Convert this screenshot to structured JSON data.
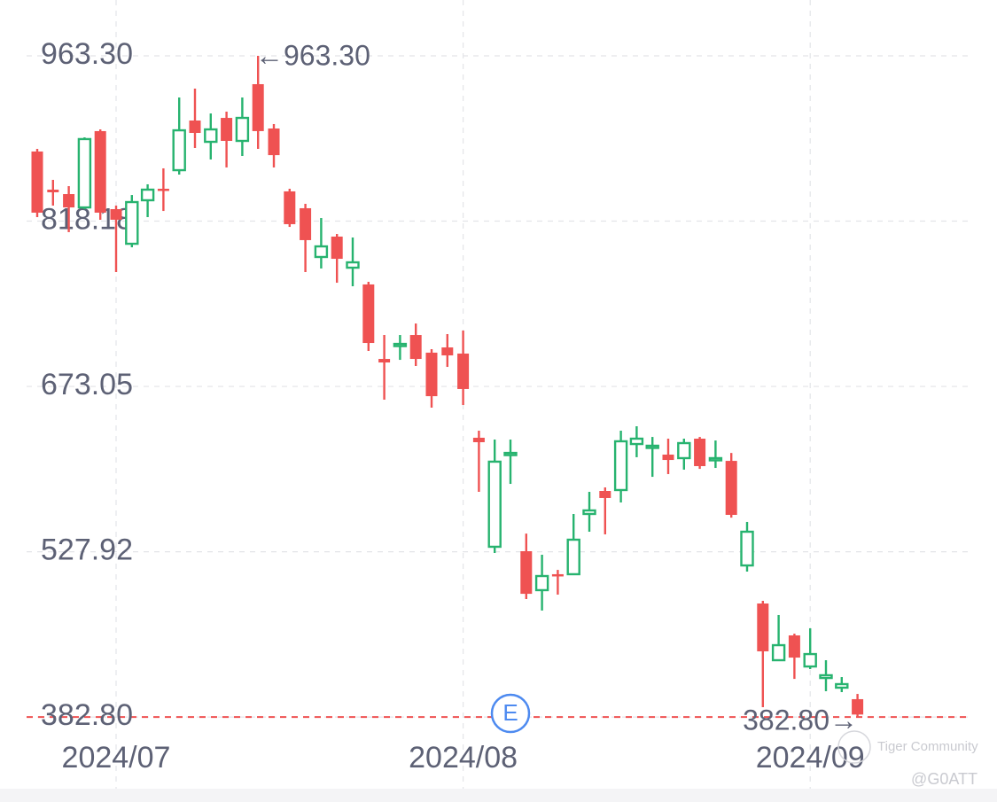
{
  "chart_data": {
    "type": "candlestick",
    "categories": [
      null,
      null,
      null,
      null,
      null,
      "2024/07",
      null,
      null,
      null,
      null,
      null,
      null,
      null,
      null,
      null,
      null,
      null,
      null,
      null,
      null,
      null,
      null,
      null,
      null,
      null,
      null,
      null,
      "2024/08",
      null,
      null,
      null,
      null,
      null,
      null,
      null,
      null,
      null,
      null,
      null,
      null,
      null,
      null,
      null,
      null,
      null,
      null,
      null,
      null,
      null,
      "2024/09",
      null,
      null,
      null
    ],
    "open": [
      879.3,
      845.8,
      841.9,
      830.2,
      897.2,
      828.7,
      798.3,
      836.5,
      846.6,
      862.9,
      906.5,
      887.8,
      908.8,
      888.6,
      938.4,
      899.5,
      844.3,
      829.5,
      786.7,
      804.6,
      777.3,
      762.6,
      697.2,
      708.9,
      718.2,
      702.7,
      707.3,
      701.9,
      628.0,
      532.3,
      613.2,
      528.4,
      494.2,
      508.2,
      508.2,
      561.1,
      581.3,
      582.1,
      622.5,
      619.4,
      613.2,
      610.1,
      627.2,
      608.5,
      607.7,
      515.9,
      482.5,
      432.7,
      454.5,
      427.2,
      417.1,
      408.6,
      398.5
    ],
    "high": [
      881.6,
      854.4,
      848.9,
      891.7,
      898.7,
      831.8,
      841.1,
      850.5,
      864.5,
      926.7,
      934.5,
      912.7,
      914.3,
      926.7,
      963.3,
      903.4,
      846.6,
      833.4,
      820.9,
      806.9,
      803.8,
      764.9,
      718.2,
      718.2,
      728.3,
      705.8,
      719.0,
      722.1,
      634.2,
      626.4,
      626.4,
      543.9,
      525.3,
      512.0,
      561.1,
      580.5,
      584.4,
      634.2,
      638.1,
      628.7,
      627.2,
      627.2,
      628.7,
      625.6,
      614.7,
      554.1,
      484.8,
      472.4,
      456.0,
      460.7,
      432.7,
      417.9,
      403.1
    ],
    "low": [
      821.7,
      831.8,
      808.5,
      828.7,
      819.4,
      773.5,
      795.2,
      821.7,
      827.1,
      859.0,
      882.4,
      872.3,
      865.3,
      875.4,
      881.6,
      865.3,
      813.1,
      773.5,
      776.6,
      764.1,
      761.0,
      704.2,
      661.4,
      696.4,
      691.0,
      654.4,
      690.2,
      656.8,
      580.5,
      526.8,
      587.5,
      486.4,
      476.3,
      490.3,
      507.4,
      545.5,
      543.2,
      571.2,
      610.9,
      593.7,
      596.1,
      600.0,
      600.7,
      601.5,
      557.9,
      510.5,
      391.5,
      432.7,
      416.3,
      424.9,
      405.5,
      404.7,
      382.8
    ],
    "close": [
      825.6,
      843.5,
      830.2,
      890.2,
      825.6,
      819.4,
      834.9,
      845.8,
      845.0,
      897.9,
      895.6,
      898.7,
      888.6,
      908.8,
      897.2,
      876.1,
      815.5,
      801.5,
      796.0,
      785.1,
      782.0,
      711.2,
      694.1,
      710.4,
      697.2,
      664.5,
      700.3,
      670.8,
      624.1,
      607.0,
      614.7,
      491.0,
      506.6,
      506.6,
      538.5,
      564.2,
      575.1,
      624.9,
      627.2,
      621.0,
      608.5,
      623.3,
      603.1,
      610.1,
      560.3,
      545.5,
      440.5,
      445.9,
      435.0,
      438.1,
      419.5,
      411.7,
      385.0
    ],
    "up_color": "#27b36f",
    "down_color": "#ef5252",
    "ylim": [
      319.9,
      1012.3
    ],
    "yticks": [
      {
        "value": 963.3,
        "label": "963.30"
      },
      818.18,
      673.05,
      527.92,
      {
        "value": 382.8,
        "label": "382.80"
      }
    ],
    "grid": true,
    "price_line": {
      "value": 382.8,
      "color": "#ef5252"
    },
    "annotations": [
      "←963.30",
      "382.80→"
    ],
    "event_marker": "E"
  },
  "watermark": {
    "brand": "Tiger Community",
    "user": "@G0ATT"
  }
}
